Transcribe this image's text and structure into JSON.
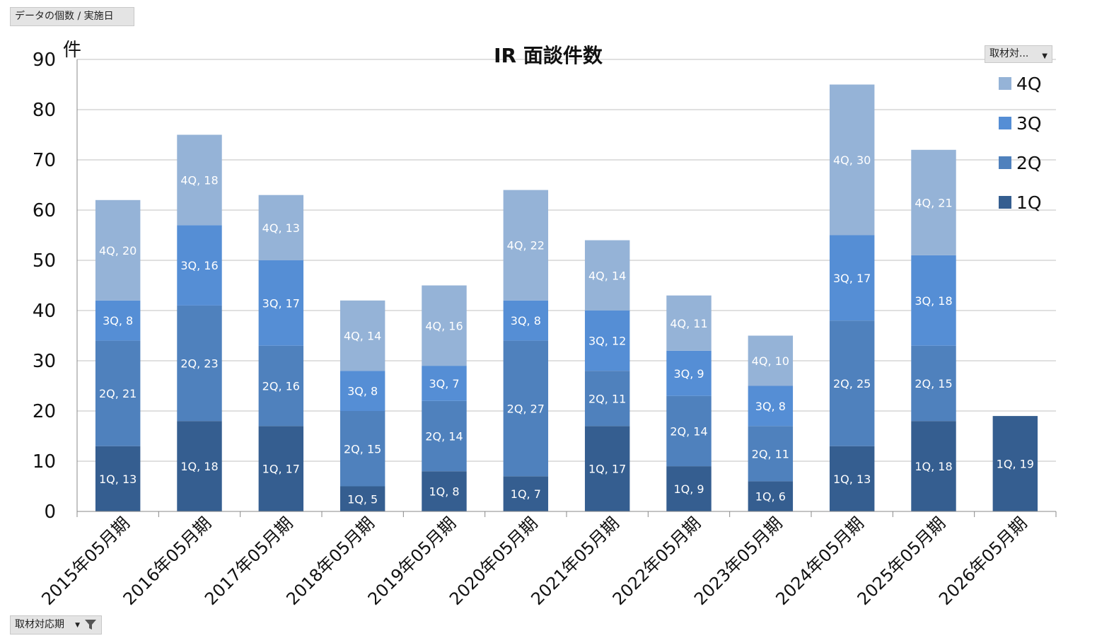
{
  "controls": {
    "values_field_label": "データの個数 / 実施日",
    "series_filter_label": "取材対...",
    "category_filter_label": "取材対応期"
  },
  "colors": {
    "1Q": "#355e90",
    "2Q": "#4f81bd",
    "3Q": "#558ed5",
    "4Q": "#95b3d7",
    "grid": "#c0c0c0",
    "axis": "#888888"
  },
  "chart_data": {
    "type": "bar",
    "stacked": true,
    "title": "IR 面談件数",
    "ylabel": "件",
    "ylim": [
      0,
      90
    ],
    "yticks": [
      0,
      10,
      20,
      30,
      40,
      50,
      60,
      70,
      80,
      90
    ],
    "grid": true,
    "legend_position": "right",
    "categories": [
      "2015年05月期",
      "2016年05月期",
      "2017年05月期",
      "2018年05月期",
      "2019年05月期",
      "2020年05月期",
      "2021年05月期",
      "2022年05月期",
      "2023年05月期",
      "2024年05月期",
      "2025年05月期",
      "2026年05月期"
    ],
    "series": [
      {
        "name": "1Q",
        "values": [
          13,
          18,
          17,
          5,
          8,
          7,
          17,
          9,
          6,
          13,
          18,
          19
        ]
      },
      {
        "name": "2Q",
        "values": [
          21,
          23,
          16,
          15,
          14,
          27,
          11,
          14,
          11,
          25,
          15,
          null
        ]
      },
      {
        "name": "3Q",
        "values": [
          8,
          16,
          17,
          8,
          7,
          8,
          12,
          9,
          8,
          17,
          18,
          null
        ]
      },
      {
        "name": "4Q",
        "values": [
          20,
          18,
          13,
          14,
          16,
          22,
          14,
          11,
          10,
          30,
          21,
          null
        ]
      }
    ]
  }
}
